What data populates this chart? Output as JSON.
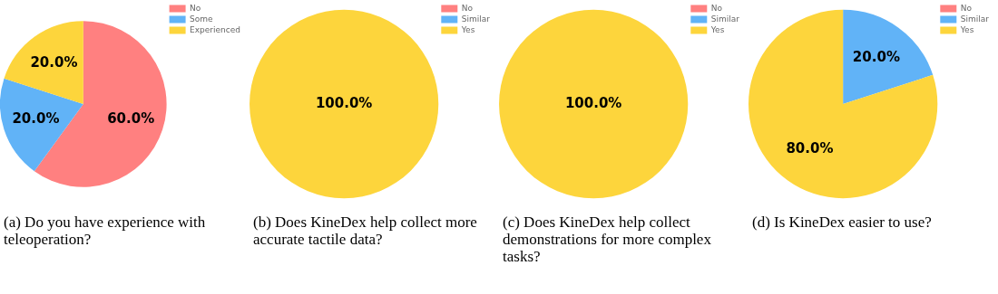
{
  "chart_data": [
    {
      "type": "pie",
      "title": "(a) Do you have experience with teleoperation?",
      "categories": [
        "No",
        "Some",
        "Experienced"
      ],
      "values": [
        60,
        20,
        20
      ],
      "colors": [
        "#ff8080",
        "#61b3f7",
        "#fdd53c"
      ],
      "value_labels": [
        "60.0%",
        "20.0%",
        "20.0%"
      ],
      "legend": "top right"
    },
    {
      "type": "pie",
      "title": "(b) Does KineDex help collect more accurate tactile data?",
      "categories": [
        "No",
        "Similar",
        "Yes"
      ],
      "values": [
        0,
        0,
        100
      ],
      "colors": [
        "#ff8080",
        "#61b3f7",
        "#fdd53c"
      ],
      "value_labels": [
        null,
        null,
        "100.0%"
      ],
      "legend": "top right"
    },
    {
      "type": "pie",
      "title": "(c) Does KineDex help collect demonstrations for more complex tasks?",
      "categories": [
        "No",
        "Similar",
        "Yes"
      ],
      "values": [
        0,
        0,
        100
      ],
      "colors": [
        "#ff8080",
        "#61b3f7",
        "#fdd53c"
      ],
      "value_labels": [
        null,
        null,
        "100.0%"
      ],
      "legend": "top right"
    },
    {
      "type": "pie",
      "title": "(d) Is KineDex easier to use?",
      "categories": [
        "No",
        "Similar",
        "Yes"
      ],
      "values": [
        0,
        20,
        80
      ],
      "colors": [
        "#ff8080",
        "#61b3f7",
        "#fdd53c"
      ],
      "value_labels": [
        null,
        "20.0%",
        "80.0%"
      ],
      "legend": "top right"
    }
  ]
}
